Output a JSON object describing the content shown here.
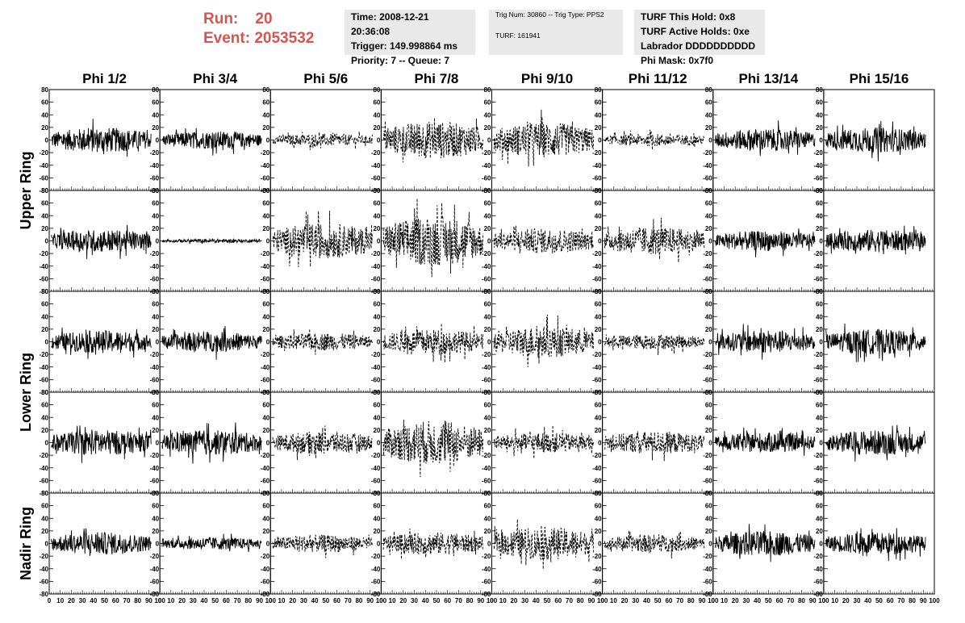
{
  "event": {
    "run_label": "Run:",
    "run_value": "20",
    "event_label": "Event:",
    "event_value": "2053532"
  },
  "info1": {
    "time": "Time: 2008-12-21 20:36:08",
    "trigger": "Trigger: 149.998864 ms",
    "priority": "Priority: 7 -- Queue: 7"
  },
  "info2": {
    "trig": "Trig Num: 30860 -- Trig Type: PPS2",
    "turf": "TURF: 161941"
  },
  "info3": {
    "hold": "TURF This Hold: 0x8",
    "active": "TURF Active Holds: 0xe",
    "labrador": "Labrador DDDDDDDDDD",
    "phimask": "Phi Mask: 0x7f0"
  },
  "chart_data": {
    "type": "line",
    "columns": [
      "Phi 1/2",
      "Phi 3/4",
      "Phi 5/6",
      "Phi 7/8",
      "Phi 9/10",
      "Phi 11/12",
      "Phi 13/14",
      "Phi 15/16"
    ],
    "row_labels": [
      "Upper Ring",
      "Lower Ring",
      "Nadir Ring"
    ],
    "panel_rows": 5,
    "x_range": [
      0,
      100
    ],
    "y_range": [
      -80,
      80
    ],
    "x_ticks": [
      "0",
      "10",
      "20",
      "30",
      "40",
      "50",
      "60",
      "70",
      "80",
      "90",
      "100"
    ],
    "y_ticks": [
      "80",
      "60",
      "40",
      "20",
      "0",
      "-20",
      "-40",
      "-60",
      "-80"
    ],
    "dashed_columns": [
      2,
      3,
      4,
      5
    ],
    "amplitudes": [
      [
        20,
        14,
        10,
        30,
        28,
        10,
        18,
        20
      ],
      [
        18,
        3,
        28,
        40,
        20,
        22,
        16,
        18
      ],
      [
        18,
        16,
        14,
        20,
        25,
        12,
        18,
        20
      ],
      [
        20,
        20,
        18,
        35,
        16,
        18,
        16,
        20
      ],
      [
        18,
        10,
        14,
        18,
        26,
        14,
        20,
        18
      ]
    ]
  }
}
